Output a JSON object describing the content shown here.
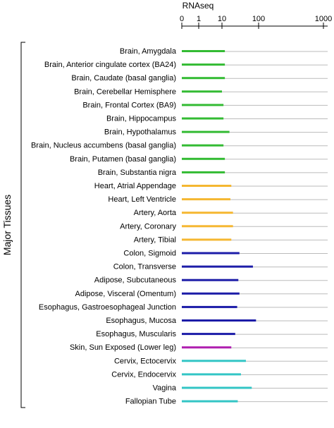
{
  "chart_data": {
    "type": "bar",
    "orientation": "horizontal",
    "x_scale": "log",
    "xlabel": "RNAseq",
    "xlim": [
      0,
      1000
    ],
    "xticks": [
      "0",
      "1",
      "10",
      "100",
      "1000"
    ],
    "group_label": "Major Tissues",
    "grid": false,
    "categories": [
      "Brain, Amygdala",
      "Brain, Anterior cingulate cortex (BA24)",
      "Brain, Caudate (basal ganglia)",
      "Brain, Cerebellar Hemisphere",
      "Brain, Frontal Cortex (BA9)",
      "Brain, Hippocampus",
      "Brain, Hypothalamus",
      "Brain, Nucleus accumbens (basal ganglia)",
      "Brain, Putamen (basal ganglia)",
      "Brain, Substantia nigra",
      "Heart, Atrial Appendage",
      "Heart, Left Ventricle",
      "Artery, Aorta",
      "Artery, Coronary",
      "Artery, Tibial",
      "Colon, Sigmoid",
      "Colon, Transverse",
      "Adipose, Subcutaneous",
      "Adipose, Visceral (Omentum)",
      "Esophagus, Gastroesophageal Junction",
      "Esophagus, Mucosa",
      "Esophagus, Muscularis",
      "Skin, Sun Exposed (Lower leg)",
      "Cervix, Ectocervix",
      "Cervix, Endocervix",
      "Vagina",
      "Fallopian Tube"
    ],
    "values": [
      12,
      12,
      12,
      10,
      11,
      11,
      16,
      11,
      12,
      12,
      18,
      17,
      20,
      20,
      18,
      30,
      70,
      28,
      30,
      26,
      85,
      23,
      18,
      45,
      33,
      65,
      27
    ],
    "colors": [
      "#33bb33",
      "#33bb33",
      "#33bb33",
      "#33bb33",
      "#33bb33",
      "#33bb33",
      "#33bb33",
      "#33bb33",
      "#33bb33",
      "#33bb33",
      "#f5b731",
      "#f5b731",
      "#f5b731",
      "#f5b731",
      "#f5b731",
      "#1c1ca8",
      "#1c1ca8",
      "#1c1ca8",
      "#1c1ca8",
      "#1c1ca8",
      "#1c1ca8",
      "#1c1ca8",
      "#b020b0",
      "#33c5c5",
      "#33c5c5",
      "#33c5c5",
      "#33c5c5"
    ],
    "background_line_color": "#bbbbbb"
  }
}
